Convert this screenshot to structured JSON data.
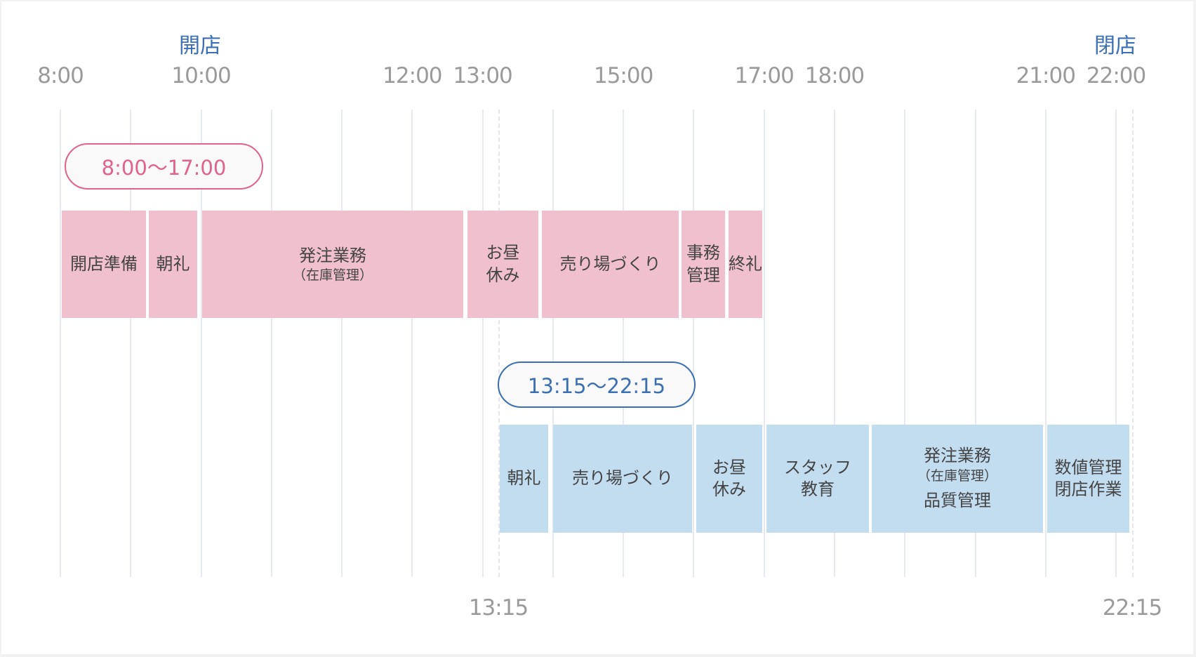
{
  "colors": {
    "pink_fill": "#f0c0ce",
    "pink_border": "#e0638b",
    "blue_fill": "#c2dcf0",
    "blue_border": "#3a6fb2",
    "marker_text": "#3b70b4",
    "time_text": "#9a9a9a"
  },
  "markers": {
    "open": "開店",
    "close": "閉店"
  },
  "time_labels": [
    "8:00",
    "10:00",
    "12:00",
    "13:00",
    "15:00",
    "17:00",
    "18:00",
    "21:00",
    "22:00"
  ],
  "bottom_labels": [
    "13:15",
    "22:15"
  ],
  "shift_early": {
    "range": "8:00〜17:00",
    "tasks": [
      {
        "lines": [
          "開店準備"
        ]
      },
      {
        "lines": [
          "朝礼"
        ]
      },
      {
        "lines": [
          "発注業務",
          "（在庫管理）"
        ]
      },
      {
        "lines": [
          "お昼",
          "休み"
        ]
      },
      {
        "lines": [
          "売り場づくり"
        ]
      },
      {
        "lines": [
          "事務",
          "管理"
        ]
      },
      {
        "lines": [
          "終礼"
        ]
      }
    ]
  },
  "shift_late": {
    "range": "13:15〜22:15",
    "tasks": [
      {
        "lines": [
          "朝礼"
        ]
      },
      {
        "lines": [
          "売り場づくり"
        ]
      },
      {
        "lines": [
          "お昼",
          "休み"
        ]
      },
      {
        "lines": [
          "スタッフ",
          "教育"
        ]
      },
      {
        "lines": [
          "発注業務",
          "（在庫管理）",
          "品質管理"
        ]
      },
      {
        "lines": [
          "数値管理",
          "閉店作業"
        ]
      }
    ]
  }
}
